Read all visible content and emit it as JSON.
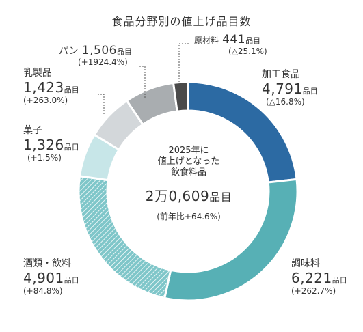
{
  "chart_data": {
    "type": "pie",
    "title": "食品分野別の値上げ品目数",
    "center": {
      "line1": "2025年に",
      "line2": "値上げとなった",
      "line3": "飲食料品",
      "total_value": "2万0,609",
      "total_unit": "品目",
      "total_change": "(前年比+64.6%)"
    },
    "unit": "品目",
    "slices": [
      {
        "name": "加工食品",
        "value": 4791,
        "value_text": "4,791",
        "change": "(△16.8%)",
        "color": "#2c6aa3",
        "pattern": false
      },
      {
        "name": "調味料",
        "value": 6221,
        "value_text": "6,221",
        "change": "(+262.7%)",
        "color": "#57b0b5",
        "pattern": false
      },
      {
        "name": "酒類・飲料",
        "value": 4901,
        "value_text": "4,901",
        "change": "(+84.8%)",
        "color": "#7fc6c9",
        "pattern": true
      },
      {
        "name": "菓子",
        "value": 1326,
        "value_text": "1,326",
        "change": "(+1.5%)",
        "color": "#c7e6e8",
        "pattern": false
      },
      {
        "name": "乳製品",
        "value": 1423,
        "value_text": "1,423",
        "change": "(+263.0%)",
        "color": "#d3d7da",
        "pattern": false
      },
      {
        "name": "パン",
        "value": 1506,
        "value_text": "1,506",
        "change": "(+1924.4%)",
        "color": "#a9adb0",
        "pattern": false
      },
      {
        "name": "原材料",
        "value": 441,
        "value_text": "441",
        "change": "(△25.1%)",
        "color": "#4a4a4a",
        "pattern": false
      }
    ]
  }
}
